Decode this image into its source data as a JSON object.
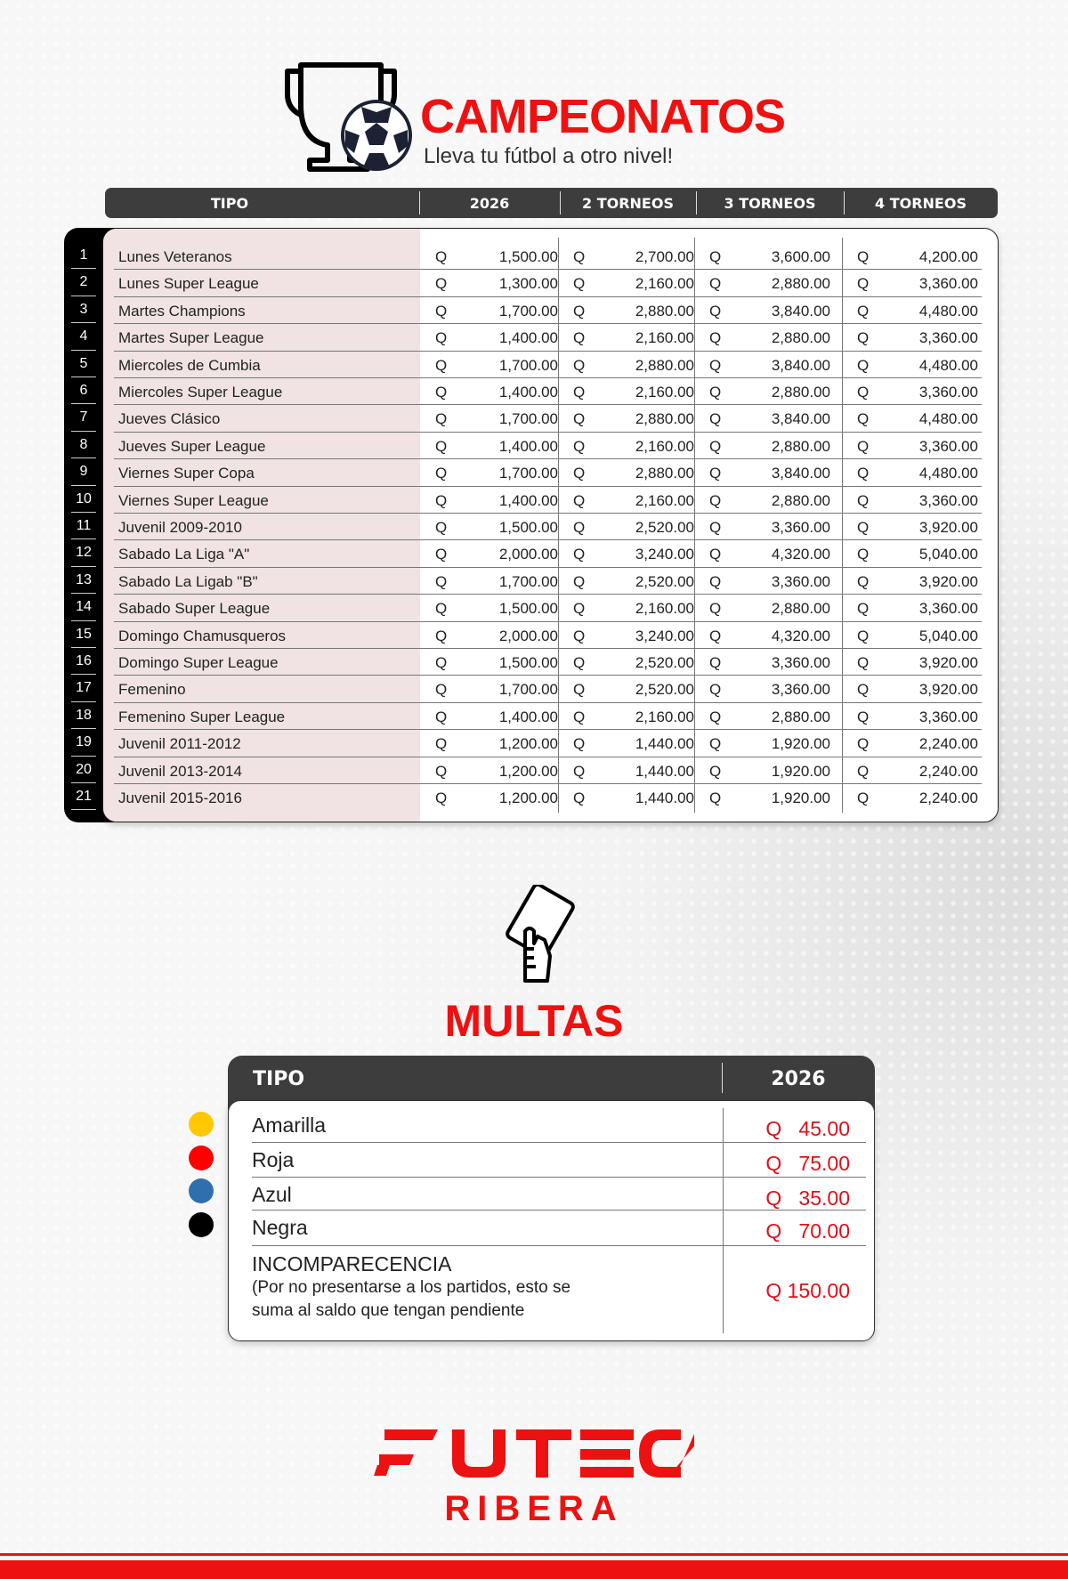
{
  "header": {
    "title": "CAMPEONATOS",
    "subtitle": "Lleva tu fútbol a otro nivel!"
  },
  "campeonatos": {
    "columns": [
      "TIPO",
      "2026",
      "2 TORNEOS",
      "3 TORNEOS",
      "4 TORNEOS"
    ],
    "currency": "Q",
    "rows": [
      {
        "n": "1",
        "tipo": "Lunes Veteranos",
        "p": [
          "1,500.00",
          "2,700.00",
          "3,600.00",
          "4,200.00"
        ]
      },
      {
        "n": "2",
        "tipo": "Lunes Super League",
        "p": [
          "1,300.00",
          "2,160.00",
          "2,880.00",
          "3,360.00"
        ]
      },
      {
        "n": "3",
        "tipo": "Martes Champions",
        "p": [
          "1,700.00",
          "2,880.00",
          "3,840.00",
          "4,480.00"
        ]
      },
      {
        "n": "4",
        "tipo": "Martes Super League",
        "p": [
          "1,400.00",
          "2,160.00",
          "2,880.00",
          "3,360.00"
        ]
      },
      {
        "n": "5",
        "tipo": "Miercoles de Cumbia",
        "p": [
          "1,700.00",
          "2,880.00",
          "3,840.00",
          "4,480.00"
        ]
      },
      {
        "n": "6",
        "tipo": "Miercoles Super League",
        "p": [
          "1,400.00",
          "2,160.00",
          "2,880.00",
          "3,360.00"
        ]
      },
      {
        "n": "7",
        "tipo": "Jueves Clásico",
        "p": [
          "1,700.00",
          "2,880.00",
          "3,840.00",
          "4,480.00"
        ]
      },
      {
        "n": "8",
        "tipo": "Jueves Super League",
        "p": [
          "1,400.00",
          "2,160.00",
          "2,880.00",
          "3,360.00"
        ]
      },
      {
        "n": "9",
        "tipo": "Viernes Super Copa",
        "p": [
          "1,700.00",
          "2,880.00",
          "3,840.00",
          "4,480.00"
        ]
      },
      {
        "n": "10",
        "tipo": "Viernes Super League",
        "p": [
          "1,400.00",
          "2,160.00",
          "2,880.00",
          "3,360.00"
        ]
      },
      {
        "n": "11",
        "tipo": "Juvenil 2009-2010",
        "p": [
          "1,500.00",
          "2,520.00",
          "3,360.00",
          "3,920.00"
        ]
      },
      {
        "n": "12",
        "tipo": "Sabado La Liga \"A\"",
        "p": [
          "2,000.00",
          "3,240.00",
          "4,320.00",
          "5,040.00"
        ]
      },
      {
        "n": "13",
        "tipo": "Sabado La Ligab \"B\"",
        "p": [
          "1,700.00",
          "2,520.00",
          "3,360.00",
          "3,920.00"
        ]
      },
      {
        "n": "14",
        "tipo": "Sabado Super League",
        "p": [
          "1,500.00",
          "2,160.00",
          "2,880.00",
          "3,360.00"
        ]
      },
      {
        "n": "15",
        "tipo": "Domingo Chamusqueros",
        "p": [
          "2,000.00",
          "3,240.00",
          "4,320.00",
          "5,040.00"
        ]
      },
      {
        "n": "16",
        "tipo": "Domingo Super League",
        "p": [
          "1,500.00",
          "2,520.00",
          "3,360.00",
          "3,920.00"
        ]
      },
      {
        "n": "17",
        "tipo": "Femenino",
        "p": [
          "1,700.00",
          "2,520.00",
          "3,360.00",
          "3,920.00"
        ]
      },
      {
        "n": "18",
        "tipo": "Femenino Super League",
        "p": [
          "1,400.00",
          "2,160.00",
          "2,880.00",
          "3,360.00"
        ]
      },
      {
        "n": "19",
        "tipo": "Juvenil  2011-2012",
        "p": [
          "1,200.00",
          "1,440.00",
          "1,920.00",
          "2,240.00"
        ]
      },
      {
        "n": "20",
        "tipo": "Juvenil 2013-2014",
        "p": [
          "1,200.00",
          "1,440.00",
          "1,920.00",
          "2,240.00"
        ]
      },
      {
        "n": "21",
        "tipo": "Juvenil 2015-2016",
        "p": [
          "1,200.00",
          "1,440.00",
          "1,920.00",
          "2,240.00"
        ]
      }
    ]
  },
  "multas": {
    "title": "MULTAS",
    "columns": [
      "TIPO",
      "2026"
    ],
    "rows": [
      {
        "tipo": "Amarilla",
        "price": "Q   45.00",
        "color": "#ffc800"
      },
      {
        "tipo": "Roja",
        "price": "Q   75.00",
        "color": "#ff0000"
      },
      {
        "tipo": "Azul",
        "price": "Q   35.00",
        "color": "#2f6fae"
      },
      {
        "tipo": "Negra",
        "price": "Q   70.00",
        "color": "#000000"
      }
    ],
    "incomparecencia": {
      "title": "INCOMPARECENCIA",
      "note_line1": "(Por no presentarse a los partidos, esto se",
      "note_line2": "suma al saldo que tengan pendiente",
      "price": "Q 150.00"
    }
  },
  "logo": {
    "brand": "FUTECA",
    "sub": "RIBERA"
  },
  "colors": {
    "accent": "#ee1111",
    "header_bar": "#3d3d3d",
    "tipo_column": "#f1e3e3"
  }
}
